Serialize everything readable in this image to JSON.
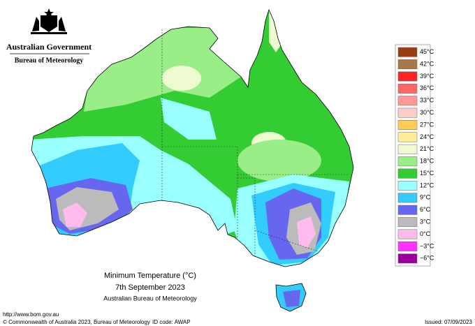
{
  "header": {
    "title": "Australian Government",
    "subtitle": "Bureau of Meteorology"
  },
  "legend": {
    "items": [
      {
        "label": "45°C",
        "color": "#993d12"
      },
      {
        "label": "42°C",
        "color": "#a8784c"
      },
      {
        "label": "39°C",
        "color": "#ff2222"
      },
      {
        "label": "36°C",
        "color": "#ff6666"
      },
      {
        "label": "33°C",
        "color": "#ff9999"
      },
      {
        "label": "30°C",
        "color": "#ffcccc"
      },
      {
        "label": "27°C",
        "color": "#ffcc55"
      },
      {
        "label": "24°C",
        "color": "#ffee99"
      },
      {
        "label": "21°C",
        "color": "#eefad0"
      },
      {
        "label": "18°C",
        "color": "#99ee88"
      },
      {
        "label": "15°C",
        "color": "#33cc33"
      },
      {
        "label": "12°C",
        "color": "#99ffff"
      },
      {
        "label": "9°C",
        "color": "#33ccff"
      },
      {
        "label": "6°C",
        "color": "#6666ee"
      },
      {
        "label": "3°C",
        "color": "#bbbbbb"
      },
      {
        "label": "0°C",
        "color": "#ffbbee"
      },
      {
        "label": "−3°C",
        "color": "#ff33ff"
      },
      {
        "label": "−6°C",
        "color": "#990099"
      }
    ]
  },
  "caption": {
    "title": "Minimum Temperature (°C)",
    "date": "7th September 2023",
    "source": "Australian Bureau of Meteorology"
  },
  "footer": {
    "url": "http://www.bom.gov.au",
    "copyright": "© Commonwealth of Australia 2023, Bureau of Meteorology",
    "id_code": "ID code: AWAP",
    "issued": "Issued: 07/09/2023"
  }
}
